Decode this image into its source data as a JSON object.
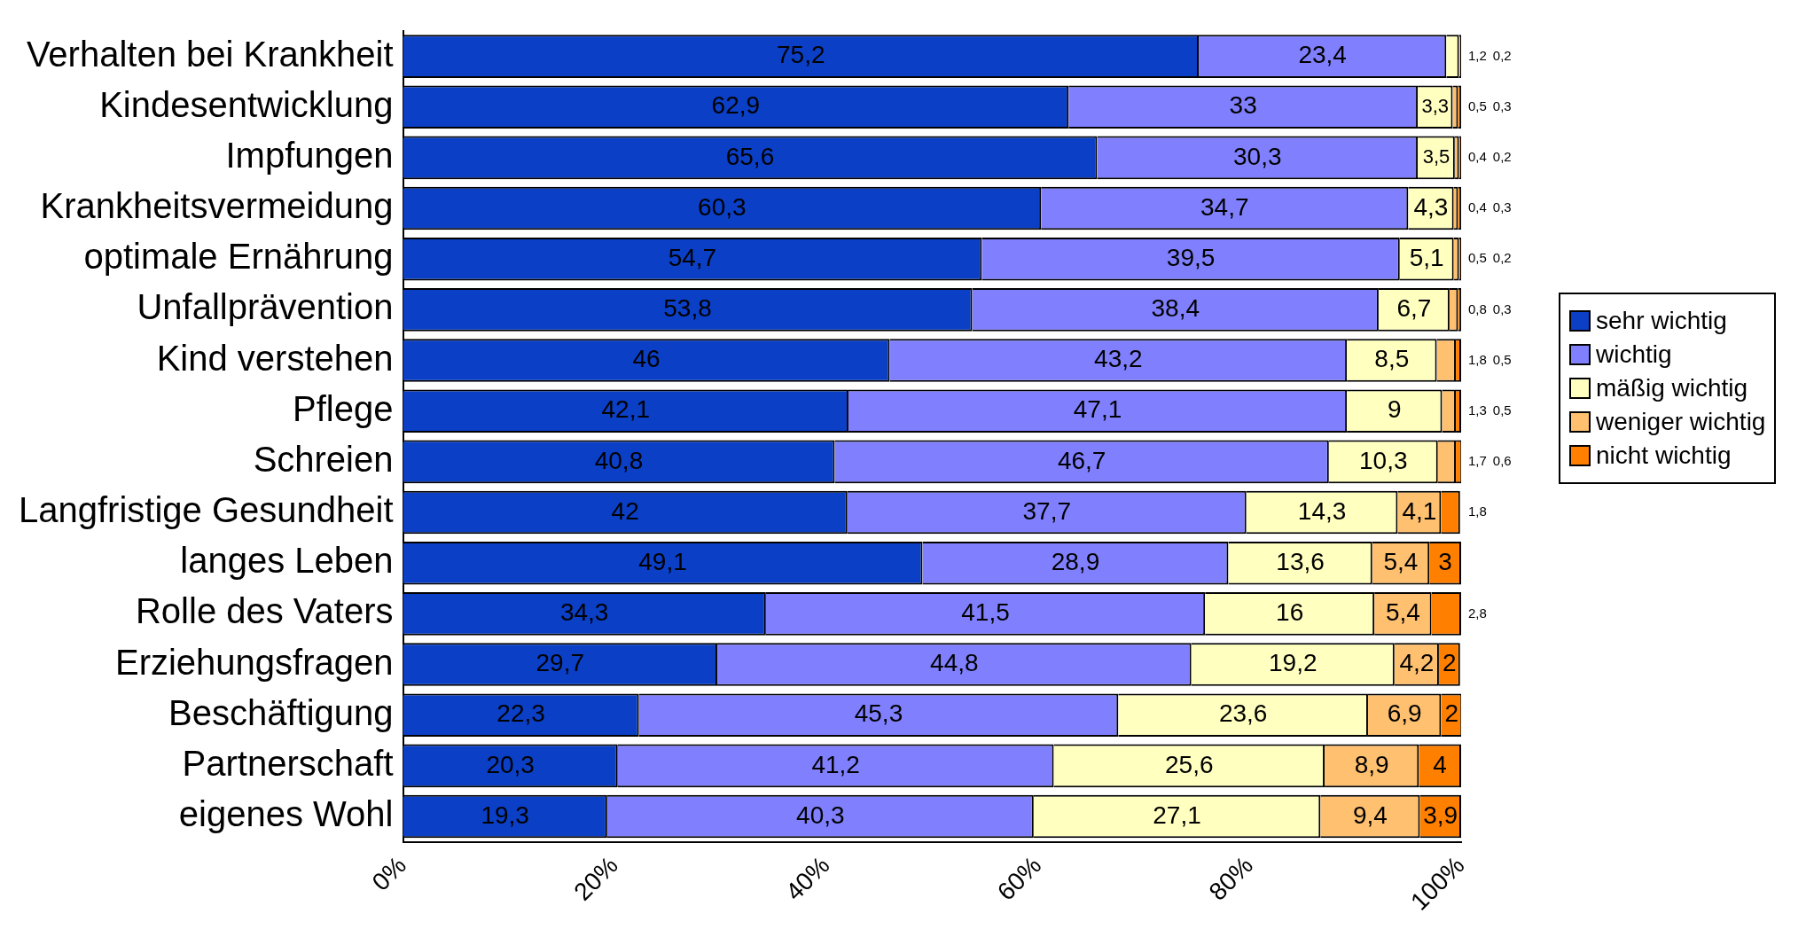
{
  "chart_data": {
    "type": "bar",
    "orientation": "horizontal",
    "stacked": true,
    "legend": "right",
    "grid": false,
    "categories": [
      "Verhalten bei Krankheit",
      "Kindesentwicklung",
      "Impfungen",
      "Krankheitsvermeidung",
      "optimale Ernährung",
      "Unfallprävention",
      "Kind verstehen",
      "Pflege",
      "Schreien",
      "Langfristige Gesundheit",
      "langes Leben",
      "Rolle des Vaters",
      "Erziehungsfragen",
      "Beschäftigung",
      "Partnerschaft",
      "eigenes Wohl"
    ],
    "xlim": [
      0,
      100
    ],
    "xticks": [
      {
        "value": 0,
        "label": "0%"
      },
      {
        "value": 20,
        "label": "20%"
      },
      {
        "value": 40,
        "label": "40%"
      },
      {
        "value": 60,
        "label": "60%"
      },
      {
        "value": 80,
        "label": "80%"
      },
      {
        "value": 100,
        "label": "100%"
      }
    ],
    "series": [
      {
        "name": "sehr wichtig",
        "color": "#0a3fc6",
        "values": [
          75.2,
          62.9,
          65.6,
          60.3,
          54.7,
          53.8,
          46,
          42.1,
          40.8,
          42,
          49.1,
          34.3,
          29.7,
          22.3,
          20.3,
          19.3
        ],
        "value_labels": [
          "75,2",
          "62,9",
          "65,6",
          "60,3",
          "54,7",
          "53,8",
          "46",
          "42,1",
          "40,8",
          "42",
          "49,1",
          "34,3",
          "29,7",
          "22,3",
          "20,3",
          "19,3"
        ]
      },
      {
        "name": "wichtig",
        "color": "#8080ff",
        "values": [
          23.4,
          33,
          30.3,
          34.7,
          39.5,
          38.4,
          43.2,
          47.1,
          46.7,
          37.7,
          28.9,
          41.5,
          44.8,
          45.3,
          41.2,
          40.3
        ],
        "value_labels": [
          "23,4",
          "33",
          "30,3",
          "34,7",
          "39,5",
          "38,4",
          "43,2",
          "47,1",
          "46,7",
          "37,7",
          "28,9",
          "41,5",
          "44,8",
          "45,3",
          "41,2",
          "40,3"
        ]
      },
      {
        "name": "mäßig wichtig",
        "color": "#ffffc0",
        "values": [
          1.2,
          3.3,
          3.5,
          4.3,
          5.1,
          6.7,
          8.5,
          9,
          10.3,
          14.3,
          13.6,
          16,
          19.2,
          23.6,
          25.6,
          27.1
        ],
        "value_labels": [
          "1,2",
          "3,3",
          "3,5",
          "4,3",
          "5,1",
          "6,7",
          "8,5",
          "9",
          "10,3",
          "14,3",
          "13,6",
          "16",
          "19,2",
          "23,6",
          "25,6",
          "27,1"
        ]
      },
      {
        "name": "weniger wichtig",
        "color": "#ffc070",
        "values": [
          0.2,
          0.5,
          0.4,
          0.4,
          0.5,
          0.8,
          1.8,
          1.3,
          1.7,
          4.1,
          5.4,
          5.4,
          4.2,
          6.9,
          8.9,
          9.4
        ],
        "value_labels": [
          "0,2",
          "0,5",
          "0,4",
          "0,4",
          "0,5",
          "0,8",
          "1,8",
          "1,3",
          "1,7",
          "4,1",
          "5,4",
          "5,4",
          "4,2",
          "6,9",
          "8,9",
          "9,4"
        ]
      },
      {
        "name": "nicht wichtig",
        "color": "#ff8000",
        "values": [
          null,
          0.3,
          0.2,
          0.3,
          0.2,
          0.3,
          0.5,
          0.5,
          0.6,
          1.8,
          3,
          2.8,
          2,
          2,
          4,
          3.9
        ],
        "value_labels": [
          null,
          "0,3",
          "0,2",
          "0,3",
          "0,2",
          "0,3",
          "0,5",
          "0,5",
          "0,6",
          "1,8",
          "3",
          "2,8",
          "2",
          "2",
          "4",
          "3,9"
        ]
      }
    ]
  }
}
